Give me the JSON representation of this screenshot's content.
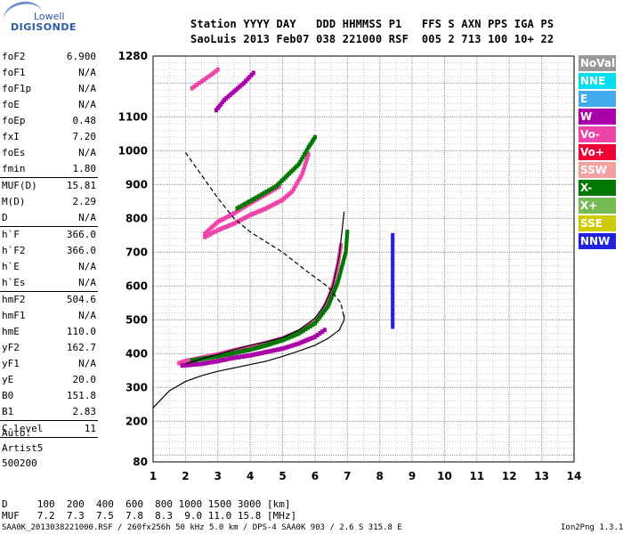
{
  "logo": {
    "line1": "Lowell",
    "line2": "DIGISONDE"
  },
  "header": {
    "line1": "Station YYYY DAY   DDD HHMMSS P1   FFS S AXN PPS IGA PS",
    "line2": "SaoLuis 2013 Feb07 038 221000 RSF  005 2 713 100 10+ 22"
  },
  "params": {
    "group1": [
      {
        "k": "foF2",
        "v": "6.900"
      },
      {
        "k": "foF1",
        "v": "N/A"
      },
      {
        "k": "foF1p",
        "v": "N/A"
      },
      {
        "k": "foE",
        "v": "N/A"
      },
      {
        "k": "foEp",
        "v": "0.48"
      },
      {
        "k": "fxI",
        "v": "7.20"
      },
      {
        "k": "foEs",
        "v": "N/A"
      },
      {
        "k": "fmin",
        "v": "1.80"
      }
    ],
    "group2": [
      {
        "k": "MUF(D)",
        "v": "15.81"
      },
      {
        "k": "M(D)",
        "v": "2.29"
      },
      {
        "k": "D",
        "v": "N/A"
      }
    ],
    "group3": [
      {
        "k": "h`F",
        "v": "366.0"
      },
      {
        "k": "h`F2",
        "v": "366.0"
      },
      {
        "k": "h`E",
        "v": "N/A"
      },
      {
        "k": "h`Es",
        "v": "N/A"
      }
    ],
    "group4": [
      {
        "k": "hmF2",
        "v": "504.6"
      },
      {
        "k": "hmF1",
        "v": "N/A"
      },
      {
        "k": "hmE",
        "v": "110.0"
      },
      {
        "k": "yF2",
        "v": "162.7"
      },
      {
        "k": "yF1",
        "v": "N/A"
      },
      {
        "k": "yE",
        "v": "20.0"
      },
      {
        "k": "B0",
        "v": "151.8"
      },
      {
        "k": "B1",
        "v": "2.83"
      }
    ],
    "group5": [
      {
        "k": "C-level",
        "v": "11"
      }
    ]
  },
  "auto": {
    "l1": "Auto:",
    "l2": "Artist5",
    "l3": "500200"
  },
  "legend": [
    {
      "label": "NoVal",
      "color": "#999999"
    },
    {
      "label": "NNE",
      "color": "#00ddee"
    },
    {
      "label": "E",
      "color": "#44aaee"
    },
    {
      "label": "W",
      "color": "#aa00aa"
    },
    {
      "label": "Vo-",
      "color": "#ee44aa"
    },
    {
      "label": "Vo+",
      "color": "#ee0033"
    },
    {
      "label": "SSW",
      "color": "#f2a0a0"
    },
    {
      "label": "X-",
      "color": "#007700"
    },
    {
      "label": "X+",
      "color": "#77bb55"
    },
    {
      "label": "SSE",
      "color": "#cccc00"
    },
    {
      "label": "NNW",
      "color": "#2222dd"
    }
  ],
  "bottom": {
    "row1": "D     100  200  400  600  800 1000 1500 3000 [km]",
    "row2": "MUF   7.2  7.3  7.5  7.8  8.3  9.0 11.0 15.8 [MHz]"
  },
  "footer": {
    "left": "SAA0K_2013038221000.RSF / 260fx256h 50 kHz 5.0 km / DPS-4 SAA0K 903 / 2.6 S 315.8 E",
    "right": "Ion2Png 1.3.17"
  },
  "chart_data": {
    "type": "scatter",
    "xlim": [
      1,
      14
    ],
    "ylim": [
      80,
      1280
    ],
    "x_ticks": [
      1,
      2,
      3,
      4,
      5,
      6,
      7,
      8,
      9,
      10,
      11,
      12,
      13,
      14
    ],
    "y_ticks": [
      80,
      200,
      300,
      400,
      500,
      600,
      700,
      800,
      900,
      1000,
      1100,
      1280
    ],
    "grid": true,
    "xlabel": "",
    "ylabel": "",
    "traces": [
      {
        "mode": "O-trace",
        "color": "#ee44aa",
        "points": [
          [
            1.8,
            372
          ],
          [
            2,
            378
          ],
          [
            2.5,
            388
          ],
          [
            3,
            398
          ],
          [
            3.5,
            410
          ],
          [
            4,
            420
          ],
          [
            4.5,
            432
          ],
          [
            5,
            445
          ],
          [
            5.5,
            465
          ],
          [
            6,
            495
          ],
          [
            6.2,
            520
          ],
          [
            6.4,
            560
          ],
          [
            6.55,
            600
          ],
          [
            6.7,
            660
          ],
          [
            6.8,
            720
          ]
        ]
      },
      {
        "mode": "O-trace-lower",
        "color": "#aa00aa",
        "points": [
          [
            1.9,
            365
          ],
          [
            2.5,
            370
          ],
          [
            3,
            378
          ],
          [
            3.5,
            388
          ],
          [
            4,
            395
          ],
          [
            4.5,
            405
          ],
          [
            5,
            415
          ],
          [
            5.5,
            430
          ],
          [
            6,
            450
          ],
          [
            6.3,
            470
          ]
        ]
      },
      {
        "mode": "X-trace",
        "color": "#007700",
        "points": [
          [
            2.2,
            380
          ],
          [
            3,
            392
          ],
          [
            3.5,
            402
          ],
          [
            4,
            412
          ],
          [
            4.5,
            425
          ],
          [
            5,
            440
          ],
          [
            5.5,
            460
          ],
          [
            6,
            490
          ],
          [
            6.4,
            540
          ],
          [
            6.7,
            610
          ],
          [
            6.95,
            700
          ],
          [
            7.0,
            760
          ]
        ]
      },
      {
        "mode": "O-2hop",
        "color": "#ee44aa",
        "points": [
          [
            2.6,
            745
          ],
          [
            3,
            765
          ],
          [
            3.5,
            785
          ],
          [
            4,
            810
          ],
          [
            4.5,
            830
          ],
          [
            5,
            855
          ],
          [
            5.3,
            880
          ],
          [
            5.6,
            930
          ],
          [
            5.8,
            990
          ]
        ]
      },
      {
        "mode": "O-2hop-upper",
        "color": "#ee44aa",
        "points": [
          [
            2.6,
            755
          ],
          [
            3,
            790
          ],
          [
            3.5,
            815
          ],
          [
            4,
            845
          ],
          [
            4.5,
            872
          ],
          [
            4.9,
            895
          ]
        ]
      },
      {
        "mode": "X-2hop",
        "color": "#007700",
        "points": [
          [
            3.6,
            830
          ],
          [
            4.2,
            862
          ],
          [
            4.8,
            895
          ],
          [
            5.5,
            960
          ],
          [
            5.8,
            1010
          ],
          [
            6.0,
            1040
          ]
        ]
      },
      {
        "mode": "O-3hop",
        "color": "#aa00aa",
        "points": [
          [
            2.95,
            1120
          ],
          [
            3.2,
            1150
          ],
          [
            3.5,
            1175
          ],
          [
            3.8,
            1200
          ],
          [
            4.1,
            1230
          ]
        ]
      },
      {
        "mode": "O-3hop-b",
        "color": "#ee44aa",
        "points": [
          [
            2.2,
            1185
          ],
          [
            2.5,
            1205
          ],
          [
            2.8,
            1225
          ],
          [
            3.0,
            1240
          ]
        ]
      },
      {
        "mode": "NNW",
        "color": "#2222dd",
        "points": [
          [
            8.4,
            480
          ],
          [
            8.4,
            520
          ],
          [
            8.4,
            560
          ],
          [
            8.4,
            600
          ],
          [
            8.4,
            640
          ],
          [
            8.4,
            680
          ],
          [
            8.4,
            720
          ],
          [
            8.4,
            750
          ]
        ]
      }
    ],
    "profiles": [
      {
        "name": "virtual-height-fit",
        "style": "solid",
        "points": [
          [
            2.0,
            370
          ],
          [
            2.5,
            385
          ],
          [
            3,
            398
          ],
          [
            3.5,
            412
          ],
          [
            4,
            425
          ],
          [
            4.5,
            435
          ],
          [
            5,
            448
          ],
          [
            5.5,
            470
          ],
          [
            6,
            505
          ],
          [
            6.3,
            545
          ],
          [
            6.55,
            600
          ],
          [
            6.75,
            690
          ],
          [
            6.9,
            820
          ]
        ]
      },
      {
        "name": "true-height-profile",
        "style": "solid",
        "points": [
          [
            1,
            240
          ],
          [
            1.5,
            290
          ],
          [
            2,
            318
          ],
          [
            2.5,
            335
          ],
          [
            3,
            348
          ],
          [
            3.5,
            358
          ],
          [
            4,
            368
          ],
          [
            4.5,
            378
          ],
          [
            5,
            392
          ],
          [
            5.5,
            408
          ],
          [
            6,
            425
          ],
          [
            6.4,
            445
          ],
          [
            6.75,
            470
          ],
          [
            6.9,
            500
          ],
          [
            6.9,
            515
          ]
        ]
      },
      {
        "name": "dashed",
        "style": "dashed",
        "points": [
          [
            2.0,
            995
          ],
          [
            3.0,
            860
          ],
          [
            3.5,
            800
          ],
          [
            4.0,
            760
          ],
          [
            5.0,
            700
          ],
          [
            5.8,
            640
          ],
          [
            6.4,
            598
          ],
          [
            6.8,
            550
          ],
          [
            6.9,
            505
          ]
        ]
      }
    ]
  }
}
